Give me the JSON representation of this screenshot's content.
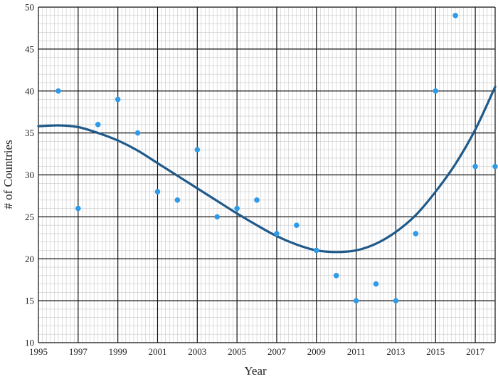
{
  "chart_data": {
    "type": "scatter",
    "xlabel": "Year",
    "ylabel": "# of Countries",
    "xlim": [
      1995,
      2018
    ],
    "ylim": [
      10,
      50
    ],
    "x_ticks": [
      1995,
      1997,
      1999,
      2001,
      2003,
      2005,
      2007,
      2009,
      2011,
      2013,
      2015,
      2017
    ],
    "x_tick_labels": [
      "1995",
      "1997",
      "1999",
      "2001",
      "2003",
      "2005",
      "2007",
      "2009",
      "2011",
      "2013",
      "2015",
      "2017"
    ],
    "y_ticks": [
      10,
      15,
      20,
      25,
      30,
      35,
      40,
      45,
      50
    ],
    "y_tick_labels": [
      "10",
      "15",
      "20",
      "25",
      "30",
      "35",
      "40",
      "45",
      "50"
    ],
    "grid": true,
    "series": [
      {
        "kind": "points",
        "color": "#2f9be8",
        "x": [
          1996,
          1997,
          1998,
          1999,
          2000,
          2001,
          2002,
          2003,
          2004,
          2005,
          2006,
          2007,
          2008,
          2009,
          2010,
          2011,
          2012,
          2013,
          2014,
          2015,
          2016,
          2017,
          2018
        ],
        "y": [
          40,
          26,
          36,
          39,
          35,
          28,
          27,
          33,
          25,
          26,
          27,
          23,
          24,
          21,
          18,
          15,
          17,
          15,
          23,
          40,
          49,
          31,
          31
        ]
      },
      {
        "kind": "trend-line",
        "color": "#1f5a8a",
        "x": [
          1995,
          1996,
          1997,
          1998,
          1999,
          2000,
          2001,
          2002,
          2003,
          2004,
          2005,
          2006,
          2007,
          2008,
          2009,
          2010,
          2011,
          2012,
          2013,
          2014,
          2015,
          2016,
          2017,
          2018
        ],
        "y": [
          35.8,
          35.9,
          35.7,
          35.0,
          34.1,
          32.9,
          31.4,
          29.9,
          28.4,
          26.9,
          25.4,
          24.0,
          22.7,
          21.7,
          21.0,
          20.8,
          21.0,
          21.8,
          23.2,
          25.2,
          28.0,
          31.3,
          35.4,
          40.5
        ]
      }
    ]
  }
}
